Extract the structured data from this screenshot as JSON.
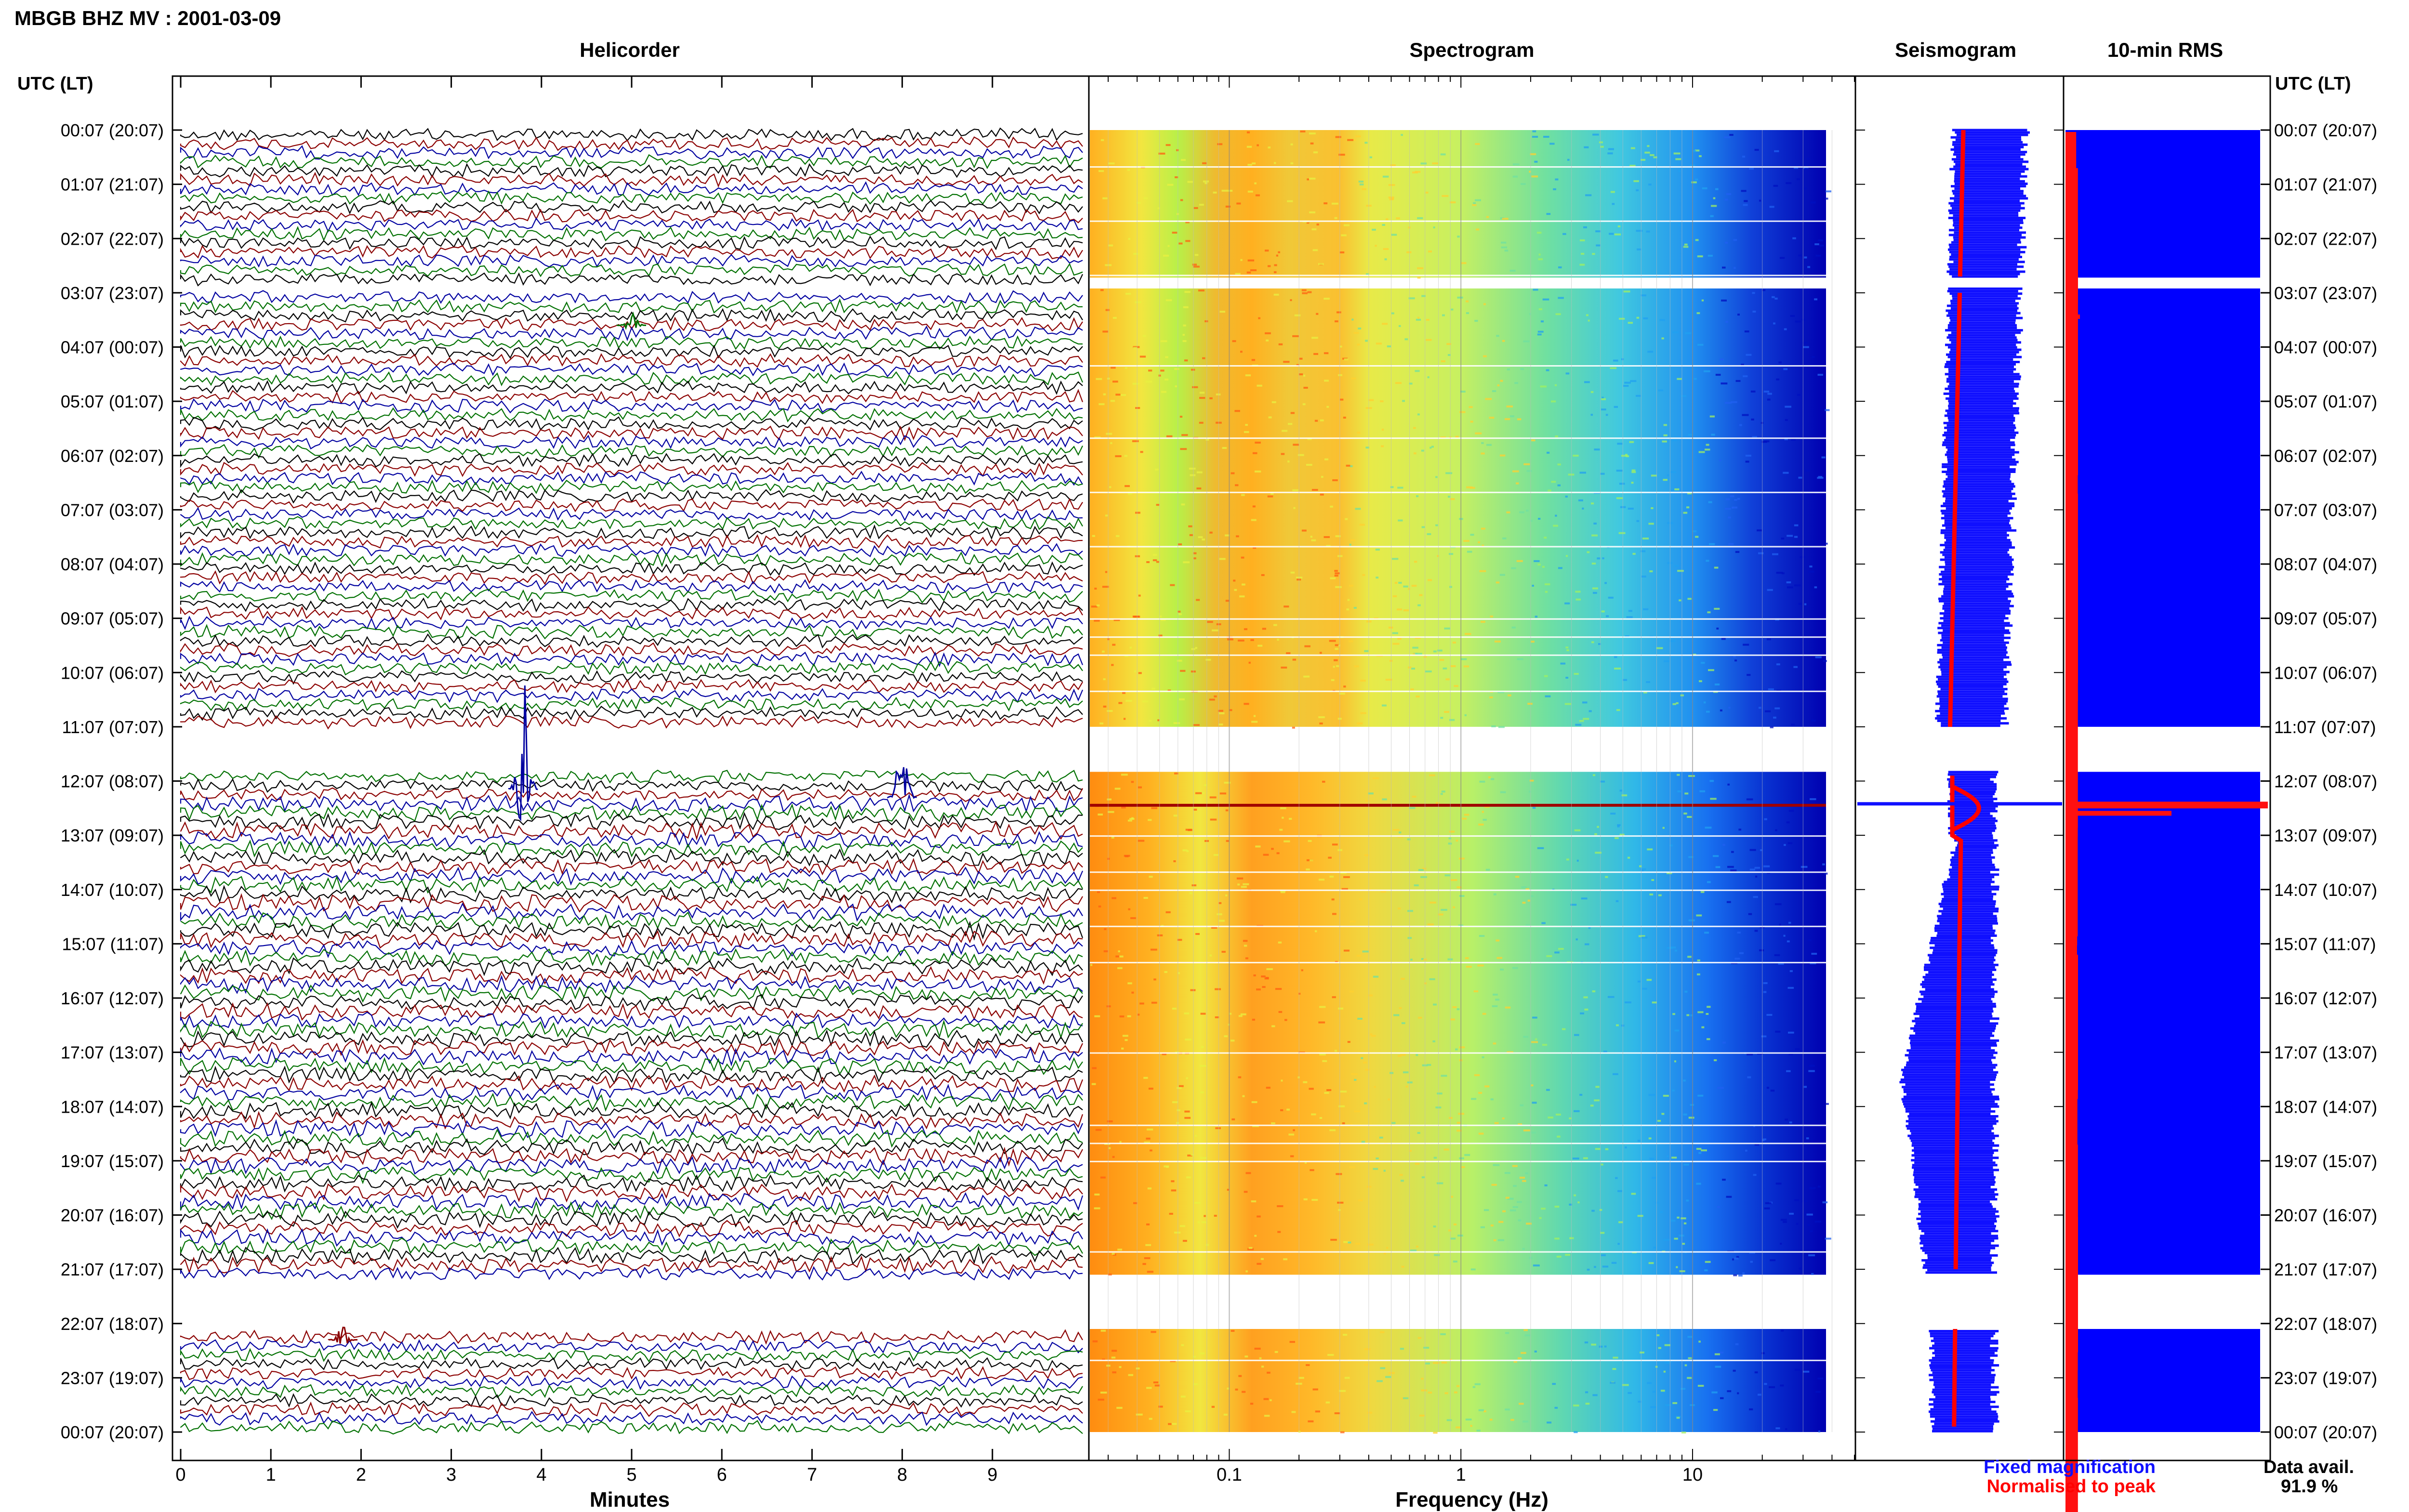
{
  "header": {
    "title": "MBGB BHZ MV : 2001-03-09"
  },
  "panels": {
    "helicorder": "Helicorder",
    "spectrogram": "Spectrogram",
    "seismogram": "Seismogram",
    "rms": "10-min RMS"
  },
  "axis_time_label": "UTC (LT)",
  "chart_data": {
    "type": "line",
    "helicorder": {
      "xlabel": "Minutes",
      "xticks": [
        "0",
        "1",
        "2",
        "3",
        "4",
        "5",
        "6",
        "7",
        "8",
        "9"
      ],
      "xlim": [
        0,
        10
      ],
      "trace_colors": [
        "#000000",
        "#8b0000",
        "#0000a0",
        "#007000"
      ],
      "row_labels": [
        "00:07 (20:07)",
        "01:07 (21:07)",
        "02:07 (22:07)",
        "03:07 (23:07)",
        "04:07 (00:07)",
        "05:07 (01:07)",
        "06:07 (02:07)",
        "07:07 (03:07)",
        "08:07 (04:07)",
        "09:07 (05:07)",
        "10:07 (06:07)",
        "11:07 (07:07)",
        "12:07 (08:07)",
        "13:07 (09:07)",
        "14:07 (10:07)",
        "15:07 (11:07)",
        "16:07 (12:07)",
        "17:07 (13:07)",
        "18:07 (14:07)",
        "19:07 (15:07)",
        "20:07 (16:07)",
        "21:07 (17:07)",
        "22:07 (18:07)",
        "23:07 (19:07)",
        "00:07 (20:07)"
      ],
      "data_gaps_hours": [
        [
          2.72,
          2.92
        ],
        [
          11.0,
          11.83
        ],
        [
          21.1,
          22.1
        ]
      ]
    },
    "spectrogram": {
      "xlabel": "Frequency (Hz)",
      "xscale": "log",
      "xticks": [
        "0.1",
        "1",
        "10"
      ],
      "xlim": [
        0.025,
        50
      ]
    },
    "seismogram": {
      "legend": [
        {
          "name": "Fixed magnification",
          "color": "#1010ff"
        },
        {
          "name": "Normalised to peak",
          "color": "#ff0000"
        }
      ]
    },
    "rms": {
      "data_avail_label": "Data avail.",
      "data_avail_value": "91.9 %"
    }
  }
}
